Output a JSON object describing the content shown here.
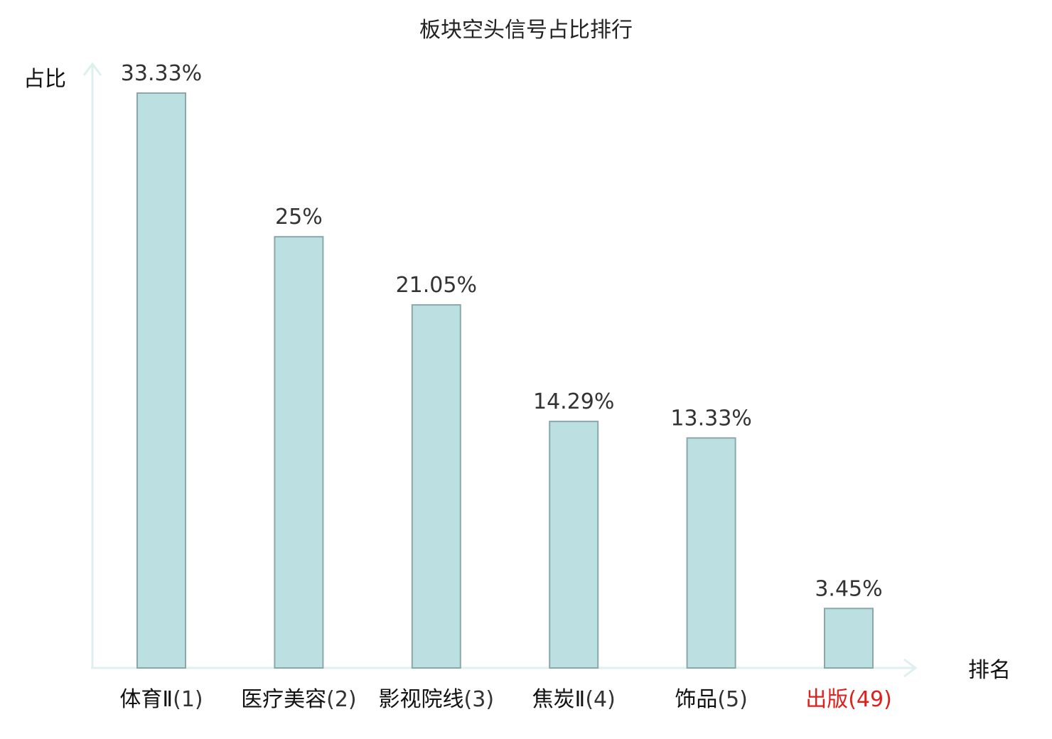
{
  "chart_data": {
    "type": "bar",
    "title": "板块空头信号占比排行",
    "ylabel": "占比",
    "xlabel": "排名",
    "categories": [
      {
        "name": "体育Ⅱ",
        "rank": "(1)",
        "highlight": false
      },
      {
        "name": "医疗美容",
        "rank": "(2)",
        "highlight": false
      },
      {
        "name": "影视院线",
        "rank": "(3)",
        "highlight": false
      },
      {
        "name": "焦炭Ⅱ",
        "rank": "(4)",
        "highlight": false
      },
      {
        "name": "饰品",
        "rank": "(5)",
        "highlight": false
      },
      {
        "name": "出版",
        "rank": "(49)",
        "highlight": true
      }
    ],
    "values": [
      33.33,
      25,
      21.05,
      14.29,
      13.33,
      3.45
    ],
    "value_labels": [
      "33.33%",
      "25%",
      "21.05%",
      "14.29%",
      "13.33%",
      "3.45%"
    ],
    "ylim": [
      0,
      33.33
    ],
    "grid": false,
    "colors": {
      "bar_fill": "#bce0e2",
      "bar_stroke": "#8aa8aa",
      "axis": "#dff0ee",
      "highlight_label": "#e0201c"
    }
  }
}
